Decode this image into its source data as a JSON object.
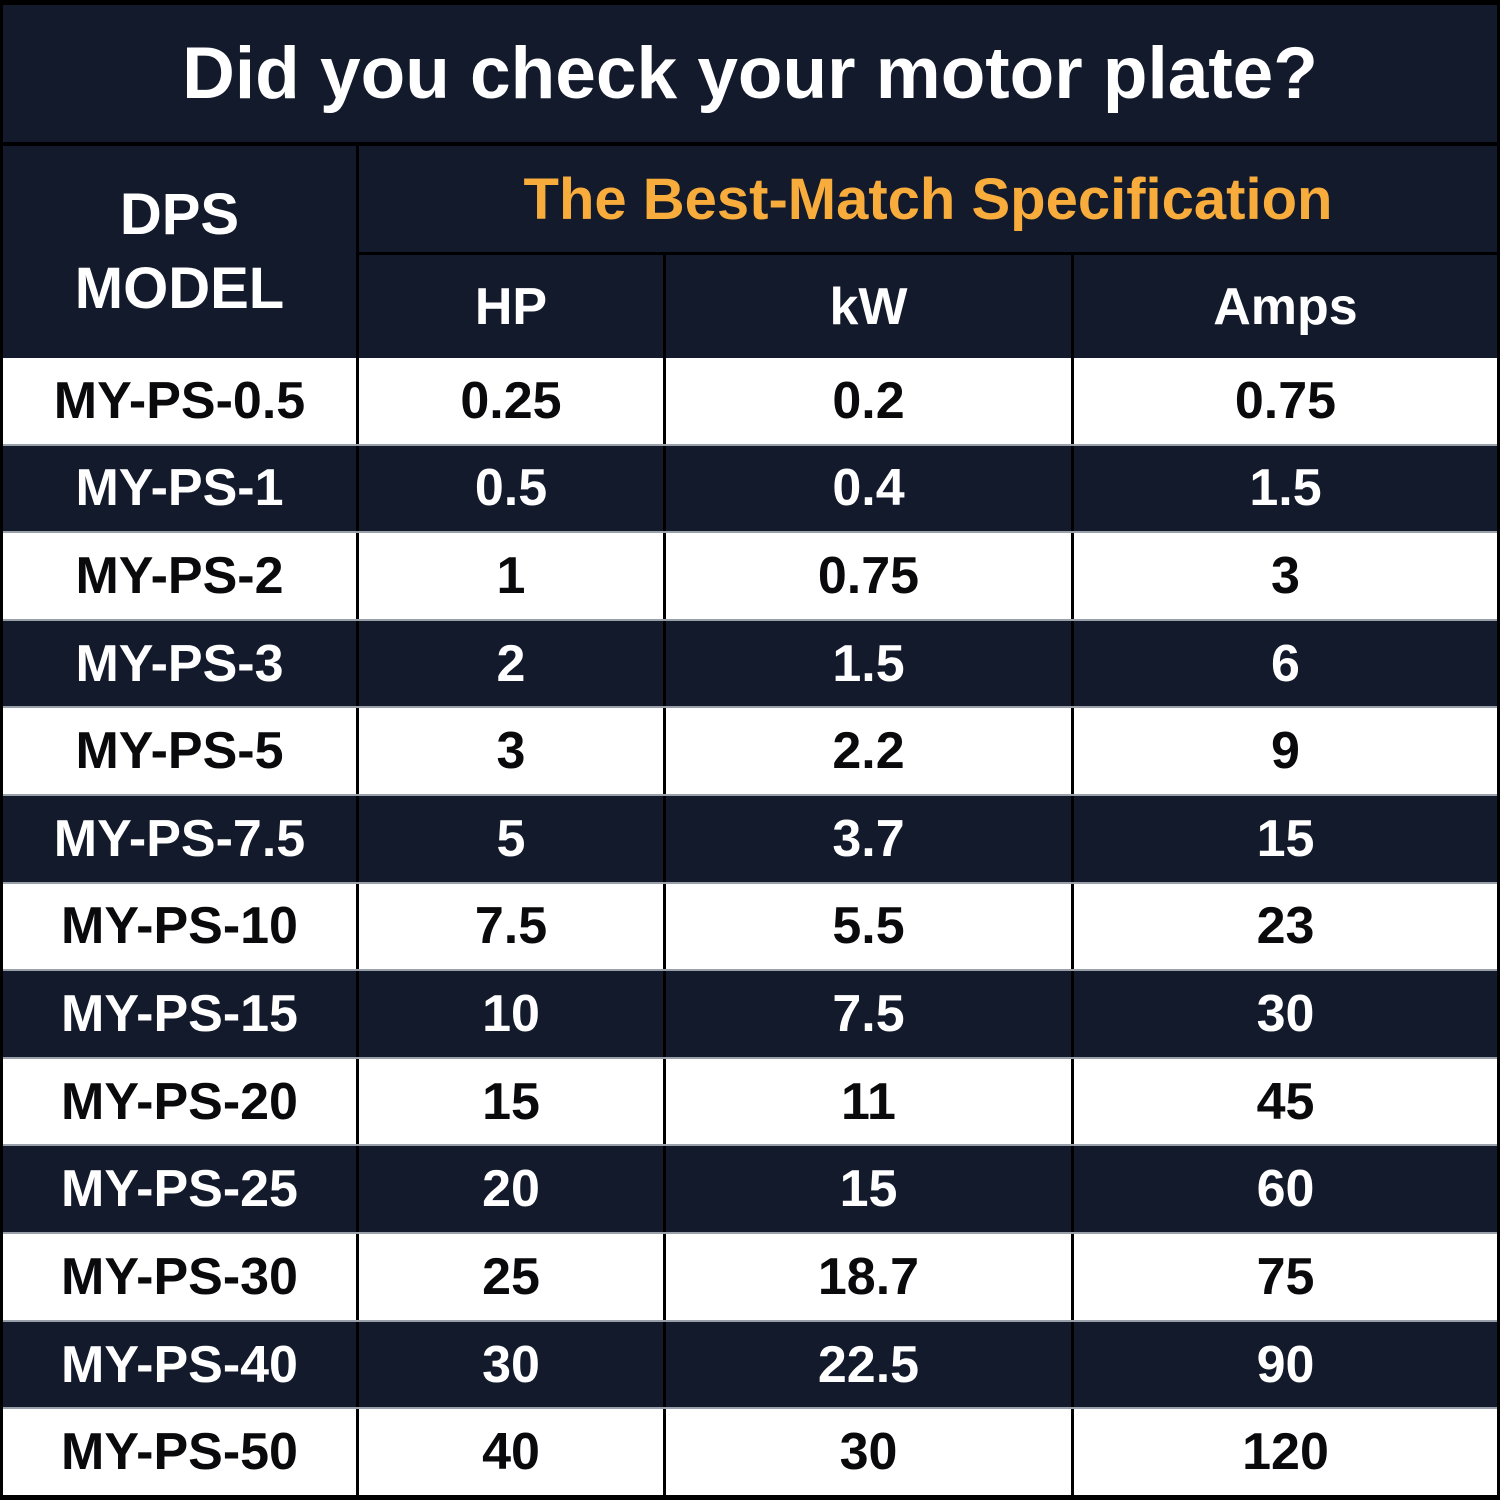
{
  "title": "Did you check your motor plate?",
  "colors": {
    "background_navy": "#131a2b",
    "accent_orange": "#f8ac3c",
    "row_white": "#ffffff",
    "text_dark": "#0a0a0c",
    "grid_black": "#000000",
    "separator_gray": "#99a0aa"
  },
  "chart_data": {
    "type": "table",
    "title": "Did you check your motor plate?",
    "row_header_label": "DPS MODEL",
    "group_header": "The Best-Match Specification",
    "columns": [
      "HP",
      "kW",
      "Amps"
    ],
    "rows": [
      {
        "model": "MY-PS-0.5",
        "hp": "0.25",
        "kw": "0.2",
        "amps": "0.75"
      },
      {
        "model": "MY-PS-1",
        "hp": "0.5",
        "kw": "0.4",
        "amps": "1.5"
      },
      {
        "model": "MY-PS-2",
        "hp": "1",
        "kw": "0.75",
        "amps": "3"
      },
      {
        "model": "MY-PS-3",
        "hp": "2",
        "kw": "1.5",
        "amps": "6"
      },
      {
        "model": "MY-PS-5",
        "hp": "3",
        "kw": "2.2",
        "amps": "9"
      },
      {
        "model": "MY-PS-7.5",
        "hp": "5",
        "kw": "3.7",
        "amps": "15"
      },
      {
        "model": "MY-PS-10",
        "hp": "7.5",
        "kw": "5.5",
        "amps": "23"
      },
      {
        "model": "MY-PS-15",
        "hp": "10",
        "kw": "7.5",
        "amps": "30"
      },
      {
        "model": "MY-PS-20",
        "hp": "15",
        "kw": "11",
        "amps": "45"
      },
      {
        "model": "MY-PS-25",
        "hp": "20",
        "kw": "15",
        "amps": "60"
      },
      {
        "model": "MY-PS-30",
        "hp": "25",
        "kw": "18.7",
        "amps": "75"
      },
      {
        "model": "MY-PS-40",
        "hp": "30",
        "kw": "22.5",
        "amps": "90"
      },
      {
        "model": "MY-PS-50",
        "hp": "40",
        "kw": "30",
        "amps": "120"
      }
    ]
  }
}
